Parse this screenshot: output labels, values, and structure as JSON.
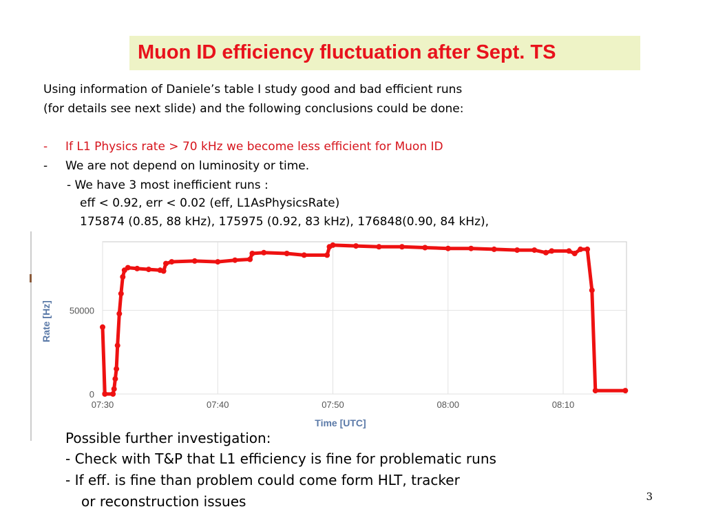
{
  "title": "Muon ID efficiency fluctuation after Sept. TS",
  "intro": {
    "line1": "Using information of Daniele’s table I study good and bad efficient runs",
    "line2": "(for details see next slide) and the following conclusions could be done:"
  },
  "bullets": [
    {
      "dash": "-",
      "text": "If L1 Physics rate > 70 kHz we become less efficient for Muon ID",
      "color": "#d6141c"
    },
    {
      "dash": "-",
      "text": "We are not depend on luminosity or time."
    }
  ],
  "sub": {
    "line1": "- We have 3 most inefficient runs :",
    "line2": "eff < 0.92, err < 0.02 (eff, L1AsPhysicsRate)",
    "line3": "175874 (0.85, 88 kHz), 175975 (0.92, 83 kHz), 176848(0.90, 84 kHz),"
  },
  "chart_data": {
    "type": "line",
    "xlabel": "Time [UTC]",
    "ylabel": "Rate [Hz]",
    "x_ticks": [
      "07:30",
      "07:40",
      "07:50",
      "08:00",
      "08:10"
    ],
    "y_ticks": [
      "0",
      "50000"
    ],
    "xlim": [
      0,
      45.5
    ],
    "ylim": [
      0,
      91000
    ],
    "line_color": "#ee1111",
    "series": [
      {
        "points": [
          [
            0.0,
            40000
          ],
          [
            0.2,
            0
          ],
          [
            0.9,
            0
          ],
          [
            1.0,
            3000
          ],
          [
            1.1,
            9000
          ],
          [
            1.2,
            15000
          ],
          [
            1.3,
            29000
          ],
          [
            1.45,
            48000
          ],
          [
            1.6,
            60000
          ],
          [
            1.75,
            70000
          ],
          [
            1.9,
            74000
          ],
          [
            2.2,
            75500
          ],
          [
            3.0,
            75000
          ],
          [
            4.0,
            74500
          ],
          [
            5.0,
            74000
          ],
          [
            5.3,
            73500
          ],
          [
            5.5,
            78000
          ],
          [
            6.0,
            79000
          ],
          [
            8.0,
            79500
          ],
          [
            10.0,
            79000
          ],
          [
            11.5,
            80000
          ],
          [
            12.8,
            80500
          ],
          [
            13.0,
            84000
          ],
          [
            14.0,
            84500
          ],
          [
            16.0,
            84000
          ],
          [
            17.5,
            83000
          ],
          [
            19.5,
            83000
          ],
          [
            19.7,
            88000
          ],
          [
            20.0,
            89000
          ],
          [
            22.0,
            88500
          ],
          [
            24.0,
            88000
          ],
          [
            26.0,
            88000
          ],
          [
            28.0,
            87500
          ],
          [
            30.0,
            87000
          ],
          [
            32.0,
            87000
          ],
          [
            34.0,
            86500
          ],
          [
            36.0,
            86000
          ],
          [
            37.5,
            86000
          ],
          [
            38.5,
            84500
          ],
          [
            39.0,
            85500
          ],
          [
            40.5,
            85500
          ],
          [
            41.0,
            84000
          ],
          [
            41.5,
            86500
          ],
          [
            42.1,
            86500
          ],
          [
            42.5,
            62000
          ],
          [
            42.8,
            2000
          ],
          [
            45.4,
            2000
          ]
        ]
      }
    ]
  },
  "lower": {
    "heading": "Possible further investigation:",
    "line1": "- Check with T&P that L1 efficiency is fine for problematic runs",
    "line2": "- If eff. is fine than problem could come form HLT, tracker",
    "line3": "or reconstruction issues"
  },
  "page_number": "3"
}
